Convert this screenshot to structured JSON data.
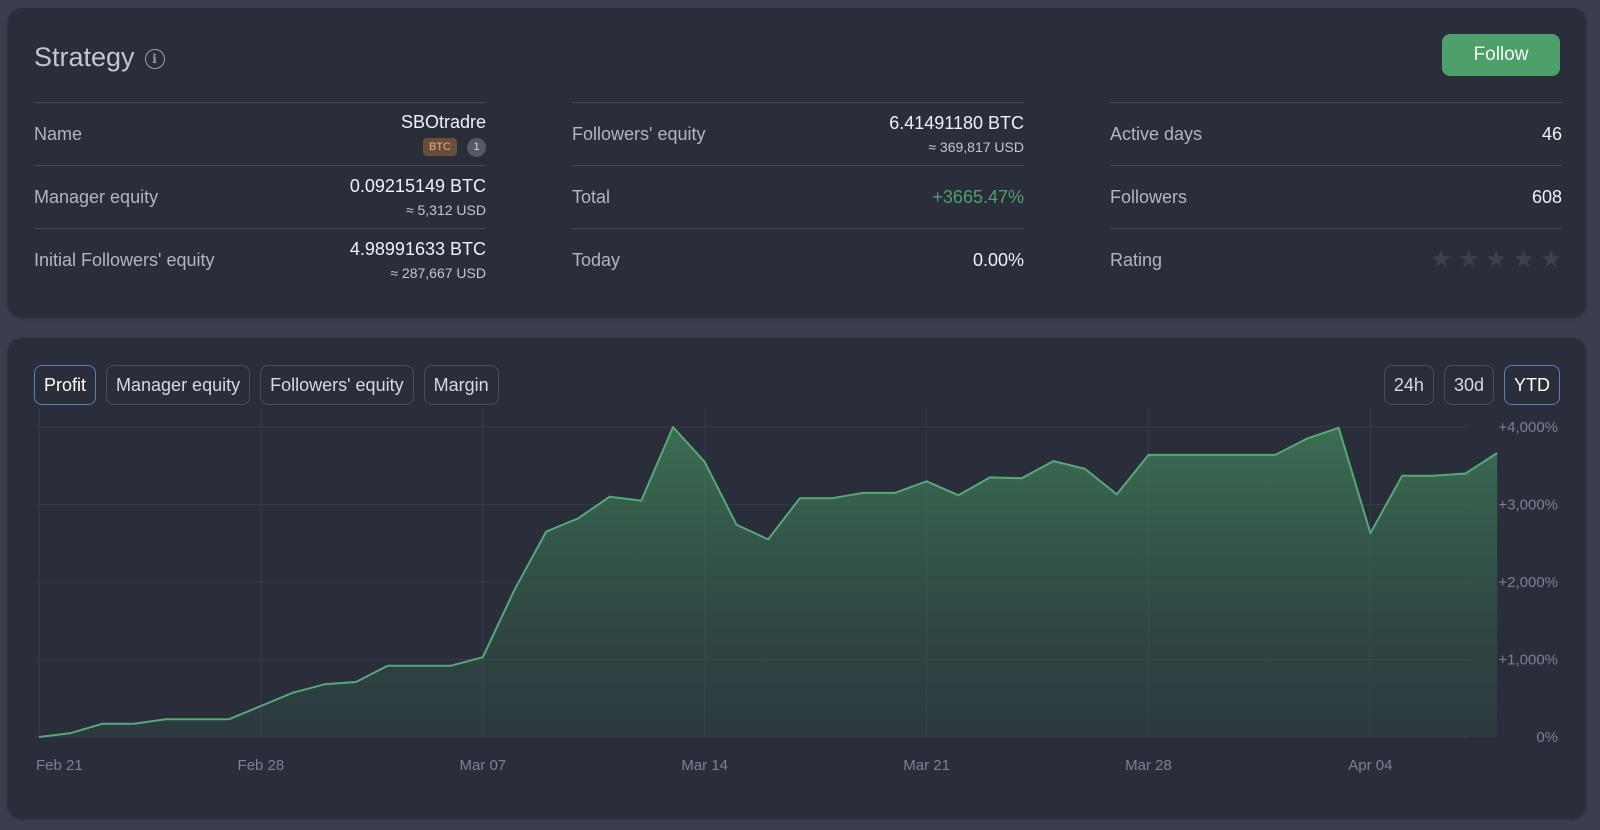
{
  "header": {
    "title": "Strategy",
    "info_icon": "info-icon",
    "follow_label": "Follow"
  },
  "col1": {
    "name_label": "Name",
    "name_value": "SBOtradre",
    "currency_badge": "BTC",
    "count_badge": "1",
    "manager_label": "Manager equity",
    "manager_btc": "0.09215149 BTC",
    "manager_usd": "≈ 5,312 USD",
    "initial_label": "Initial Followers' equity",
    "initial_btc": "4.98991633 BTC",
    "initial_usd": "≈ 287,667 USD"
  },
  "col2": {
    "followers_equity_label": "Followers' equity",
    "followers_equity_btc": "6.41491180 BTC",
    "followers_equity_usd": "≈ 369,817 USD",
    "total_label": "Total",
    "total_value": "+3665.47%",
    "today_label": "Today",
    "today_value": "0.00%"
  },
  "col3": {
    "active_days_label": "Active days",
    "active_days_value": "46",
    "followers_label": "Followers",
    "followers_value": "608",
    "rating_label": "Rating",
    "rating_stars_filled": 0,
    "rating_stars_total": 5
  },
  "chart_tabs": [
    "Profit",
    "Manager equity",
    "Followers' equity",
    "Margin"
  ],
  "active_tab": "Profit",
  "ranges": [
    "24h",
    "30d",
    "YTD"
  ],
  "active_range": "YTD",
  "colors": {
    "accent": "#4ea06b",
    "active_border": "#5b7fb8",
    "card": "#2a2d3a"
  },
  "chart_data": {
    "type": "area",
    "x_ticks": [
      "Feb 21",
      "Feb 28",
      "Mar 07",
      "Mar 14",
      "Mar 21",
      "Mar 28",
      "Apr 04"
    ],
    "y_ticks": [
      "0%",
      "+1,000%",
      "+2,000%",
      "+3,000%",
      "+4,000%"
    ],
    "ylim": [
      0,
      4000
    ],
    "grid": true,
    "x": [
      "Feb 21",
      "Feb 22",
      "Feb 23",
      "Feb 24",
      "Feb 25",
      "Feb 26",
      "Feb 27",
      "Feb 28",
      "Mar 01",
      "Mar 02",
      "Mar 03",
      "Mar 04",
      "Mar 05",
      "Mar 06",
      "Mar 07",
      "Mar 08",
      "Mar 09",
      "Mar 10",
      "Mar 11",
      "Mar 12",
      "Mar 13",
      "Mar 14",
      "Mar 15",
      "Mar 16",
      "Mar 17",
      "Mar 18",
      "Mar 19",
      "Mar 20",
      "Mar 21",
      "Mar 22",
      "Mar 23",
      "Mar 24",
      "Mar 25",
      "Mar 26",
      "Mar 27",
      "Mar 28",
      "Mar 29",
      "Mar 30",
      "Mar 31",
      "Apr 01",
      "Apr 02",
      "Apr 03",
      "Apr 04",
      "Apr 05",
      "Apr 06",
      "Apr 07",
      "Apr 08"
    ],
    "values": [
      0,
      50,
      170,
      170,
      230,
      230,
      230,
      400,
      570,
      680,
      710,
      920,
      920,
      920,
      1030,
      1900,
      2650,
      2820,
      3100,
      3050,
      4000,
      3550,
      2740,
      2550,
      3080,
      3080,
      3150,
      3150,
      3300,
      3120,
      3350,
      3340,
      3560,
      3460,
      3130,
      3640,
      3640,
      3640,
      3640,
      3640,
      3850,
      3990,
      2630,
      3370,
      3370,
      3400,
      3665
    ]
  }
}
